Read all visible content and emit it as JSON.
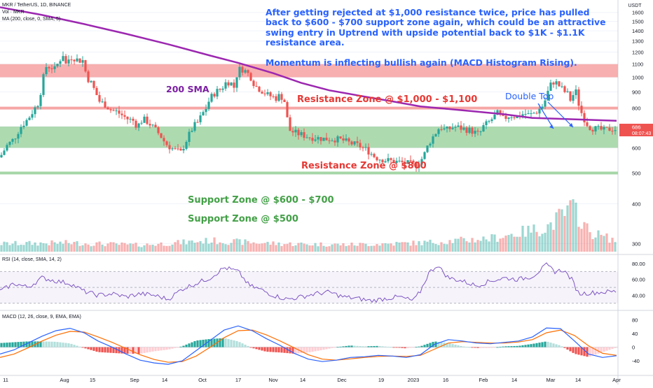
{
  "header": {
    "symbol_line": "MKR / TetherUS, 1D, BINANCE",
    "volume_line": "Vol · MKR",
    "ma_line": "MA (200, close, 0, SMA, 5)",
    "rsi_line": "RSI (14, close, SMA, 14, 2)",
    "macd_line": "MACD (12, 26, close, 9, EMA, EMA)"
  },
  "commentary": {
    "lines": [
      "After getting rejected at $1,000 resistance twice, price has pulled",
      "back to $600 - $700 support zone again, which could be an attractive",
      "swing entry in Uptrend with upside potential back to $1K - $1.1K",
      "resistance area.",
      "",
      "Momentum is inflecting bullish again (MACD Histogram Rising)."
    ]
  },
  "annotations": {
    "sma_label": "200 SMA",
    "double_top": "Double Top",
    "resistance_1000": "Resistance Zone @ $1,000 - $1,100",
    "resistance_800": "Resistance Zone @ $800",
    "support_600": "Support Zone @ $600 - $700",
    "support_500": "Support Zone @ $500"
  },
  "axis": {
    "currency": "USDT",
    "price_ticks": [
      "1600",
      "1500",
      "1400",
      "1300",
      "1200",
      "1100",
      "1000",
      "900",
      "800",
      "700",
      "600",
      "500",
      "400",
      "300"
    ],
    "rsi_ticks": [
      "80.00",
      "60.00",
      "40.00"
    ],
    "macd_ticks": [
      "80",
      "40",
      "0",
      "-40"
    ],
    "time_ticks": [
      "11",
      "Aug",
      "15",
      "Sep",
      "14",
      "Oct",
      "17",
      "Nov",
      "14",
      "Dec",
      "19",
      "2023",
      "16",
      "Feb",
      "14",
      "Mar",
      "14",
      "Apr"
    ],
    "last_price": "686",
    "countdown": "08:07:43"
  },
  "colors": {
    "up": "#26a69a",
    "down": "#ef5350",
    "sma": "#9c27b0",
    "resistance_zone": "#f7a6a6",
    "support_zone": "#a5d6a7",
    "text_blue": "#2962ff",
    "text_red": "#e53935",
    "text_green": "#43a047",
    "rsi_line": "#7e57c2",
    "macd_line": "#2962ff",
    "signal_line": "#ff6d00"
  },
  "chart_data": {
    "type": "candlestick",
    "price_scale": "log",
    "ylim": [
      280,
      1750
    ],
    "zones": [
      {
        "name": "Resistance Zone @ $1,000 - $1,100",
        "low": 1000,
        "high": 1100,
        "kind": "resistance"
      },
      {
        "name": "Resistance Zone @ $800",
        "level": 800,
        "kind": "resistance"
      },
      {
        "name": "Support Zone @ $600 - $700",
        "low": 600,
        "high": 700,
        "kind": "support"
      },
      {
        "name": "Support Zone @ $500",
        "level": 500,
        "kind": "support"
      }
    ],
    "close_path": [
      [
        0,
        560
      ],
      [
        10,
        610
      ],
      [
        20,
        640
      ],
      [
        30,
        700
      ],
      [
        40,
        740
      ],
      [
        50,
        800
      ],
      [
        56,
        840
      ],
      [
        60,
        960
      ],
      [
        66,
        1080
      ],
      [
        72,
        1080
      ],
      [
        78,
        1060
      ],
      [
        84,
        1120
      ],
      [
        90,
        1180
      ],
      [
        94,
        1100
      ],
      [
        100,
        1160
      ],
      [
        106,
        1150
      ],
      [
        112,
        1130
      ],
      [
        118,
        1130
      ],
      [
        124,
        1000
      ],
      [
        130,
        960
      ],
      [
        136,
        900
      ],
      [
        142,
        840
      ],
      [
        150,
        820
      ],
      [
        158,
        790
      ],
      [
        166,
        780
      ],
      [
        174,
        760
      ],
      [
        182,
        740
      ],
      [
        190,
        730
      ],
      [
        196,
        700
      ],
      [
        204,
        740
      ],
      [
        212,
        720
      ],
      [
        220,
        690
      ],
      [
        228,
        660
      ],
      [
        236,
        620
      ],
      [
        244,
        600
      ],
      [
        250,
        590
      ],
      [
        258,
        580
      ],
      [
        264,
        620
      ],
      [
        270,
        660
      ],
      [
        276,
        700
      ],
      [
        282,
        720
      ],
      [
        288,
        760
      ],
      [
        294,
        800
      ],
      [
        300,
        860
      ],
      [
        308,
        900
      ],
      [
        316,
        920
      ],
      [
        322,
        960
      ],
      [
        328,
        970
      ],
      [
        334,
        930
      ],
      [
        340,
        1060
      ],
      [
        346,
        1060
      ],
      [
        352,
        1040
      ],
      [
        358,
        1000
      ],
      [
        364,
        940
      ],
      [
        370,
        920
      ],
      [
        376,
        900
      ],
      [
        382,
        880
      ],
      [
        388,
        870
      ],
      [
        394,
        860
      ],
      [
        400,
        880
      ],
      [
        406,
        840
      ],
      [
        410,
        740
      ],
      [
        414,
        680
      ],
      [
        420,
        670
      ],
      [
        430,
        660
      ],
      [
        440,
        650
      ],
      [
        452,
        645
      ],
      [
        464,
        640
      ],
      [
        476,
        640
      ],
      [
        488,
        635
      ],
      [
        500,
        620
      ],
      [
        512,
        610
      ],
      [
        524,
        590
      ],
      [
        536,
        560
      ],
      [
        548,
        550
      ],
      [
        560,
        545
      ],
      [
        572,
        540
      ],
      [
        584,
        535
      ],
      [
        594,
        530
      ],
      [
        604,
        560
      ],
      [
        612,
        620
      ],
      [
        620,
        660
      ],
      [
        628,
        700
      ],
      [
        636,
        680
      ],
      [
        648,
        700
      ],
      [
        660,
        690
      ],
      [
        672,
        680
      ],
      [
        684,
        660
      ],
      [
        690,
        700
      ],
      [
        700,
        730
      ],
      [
        710,
        770
      ],
      [
        718,
        740
      ],
      [
        728,
        760
      ],
      [
        738,
        750
      ],
      [
        748,
        770
      ],
      [
        756,
        760
      ],
      [
        766,
        780
      ],
      [
        776,
        820
      ],
      [
        782,
        900
      ],
      [
        788,
        970
      ],
      [
        794,
        960
      ],
      [
        800,
        930
      ],
      [
        806,
        900
      ],
      [
        812,
        880
      ],
      [
        816,
        820
      ],
      [
        820,
        940
      ],
      [
        824,
        860
      ],
      [
        828,
        790
      ],
      [
        834,
        740
      ],
      [
        840,
        700
      ],
      [
        848,
        690
      ],
      [
        856,
        685
      ],
      [
        864,
        680
      ],
      [
        872,
        690
      ],
      [
        880,
        686
      ]
    ],
    "sma_200_path": [
      [
        0,
        1660
      ],
      [
        60,
        1570
      ],
      [
        120,
        1470
      ],
      [
        180,
        1370
      ],
      [
        240,
        1270
      ],
      [
        300,
        1170
      ],
      [
        340,
        1110
      ],
      [
        390,
        1030
      ],
      [
        430,
        960
      ],
      [
        470,
        910
      ],
      [
        520,
        870
      ],
      [
        560,
        840
      ],
      [
        600,
        810
      ],
      [
        640,
        795
      ],
      [
        680,
        780
      ],
      [
        720,
        765
      ],
      [
        760,
        745
      ],
      [
        800,
        740
      ],
      [
        840,
        735
      ],
      [
        880,
        730
      ]
    ],
    "volume_path": [
      [
        0,
        0.18
      ],
      [
        100,
        0.2
      ],
      [
        200,
        0.15
      ],
      [
        300,
        0.25
      ],
      [
        400,
        0.18
      ],
      [
        500,
        0.16
      ],
      [
        600,
        0.2
      ],
      [
        700,
        0.3
      ],
      [
        780,
        0.55
      ],
      [
        810,
        0.9
      ],
      [
        820,
        1.0
      ],
      [
        840,
        0.45
      ],
      [
        880,
        0.25
      ]
    ],
    "rsi_ylim": [
      28,
      88
    ],
    "rsi_path": [
      [
        0,
        45
      ],
      [
        20,
        55
      ],
      [
        40,
        50
      ],
      [
        60,
        62
      ],
      [
        80,
        58
      ],
      [
        100,
        55
      ],
      [
        120,
        45
      ],
      [
        140,
        40
      ],
      [
        160,
        42
      ],
      [
        180,
        38
      ],
      [
        200,
        42
      ],
      [
        220,
        40
      ],
      [
        240,
        35
      ],
      [
        260,
        48
      ],
      [
        280,
        55
      ],
      [
        300,
        62
      ],
      [
        320,
        75
      ],
      [
        340,
        70
      ],
      [
        356,
        52
      ],
      [
        370,
        48
      ],
      [
        390,
        40
      ],
      [
        410,
        35
      ],
      [
        430,
        38
      ],
      [
        450,
        42
      ],
      [
        470,
        44
      ],
      [
        490,
        38
      ],
      [
        510,
        36
      ],
      [
        530,
        33
      ],
      [
        550,
        36
      ],
      [
        570,
        38
      ],
      [
        590,
        33
      ],
      [
        600,
        45
      ],
      [
        612,
        68
      ],
      [
        624,
        78
      ],
      [
        640,
        62
      ],
      [
        660,
        58
      ],
      [
        680,
        52
      ],
      [
        700,
        58
      ],
      [
        720,
        62
      ],
      [
        740,
        60
      ],
      [
        760,
        64
      ],
      [
        780,
        78
      ],
      [
        792,
        70
      ],
      [
        804,
        72
      ],
      [
        816,
        60
      ],
      [
        826,
        42
      ],
      [
        840,
        43
      ],
      [
        860,
        44
      ],
      [
        880,
        45
      ]
    ],
    "macd_ylim": [
      -60,
      95
    ],
    "macd_path": [
      [
        0,
        -20
      ],
      [
        20,
        -8
      ],
      [
        40,
        12
      ],
      [
        60,
        32
      ],
      [
        80,
        48
      ],
      [
        100,
        55
      ],
      [
        120,
        42
      ],
      [
        140,
        18
      ],
      [
        160,
        0
      ],
      [
        180,
        -20
      ],
      [
        200,
        -38
      ],
      [
        220,
        -46
      ],
      [
        240,
        -50
      ],
      [
        260,
        -40
      ],
      [
        280,
        -10
      ],
      [
        300,
        20
      ],
      [
        320,
        50
      ],
      [
        340,
        62
      ],
      [
        360,
        48
      ],
      [
        380,
        25
      ],
      [
        400,
        5
      ],
      [
        420,
        -18
      ],
      [
        440,
        -35
      ],
      [
        460,
        -42
      ],
      [
        480,
        -38
      ],
      [
        500,
        -30
      ],
      [
        520,
        -28
      ],
      [
        540,
        -24
      ],
      [
        560,
        -26
      ],
      [
        580,
        -30
      ],
      [
        600,
        -22
      ],
      [
        620,
        8
      ],
      [
        640,
        22
      ],
      [
        660,
        18
      ],
      [
        680,
        12
      ],
      [
        700,
        10
      ],
      [
        720,
        14
      ],
      [
        740,
        18
      ],
      [
        760,
        30
      ],
      [
        780,
        56
      ],
      [
        800,
        54
      ],
      [
        820,
        18
      ],
      [
        840,
        -20
      ],
      [
        860,
        -30
      ],
      [
        880,
        -25
      ]
    ],
    "signal_path": [
      [
        0,
        -30
      ],
      [
        20,
        -20
      ],
      [
        40,
        -2
      ],
      [
        60,
        18
      ],
      [
        80,
        35
      ],
      [
        100,
        46
      ],
      [
        120,
        44
      ],
      [
        140,
        30
      ],
      [
        160,
        14
      ],
      [
        180,
        -4
      ],
      [
        200,
        -22
      ],
      [
        220,
        -36
      ],
      [
        240,
        -44
      ],
      [
        260,
        -42
      ],
      [
        280,
        -26
      ],
      [
        300,
        0
      ],
      [
        320,
        28
      ],
      [
        340,
        48
      ],
      [
        360,
        50
      ],
      [
        380,
        36
      ],
      [
        400,
        18
      ],
      [
        420,
        -2
      ],
      [
        440,
        -22
      ],
      [
        460,
        -35
      ],
      [
        480,
        -38
      ],
      [
        500,
        -34
      ],
      [
        520,
        -30
      ],
      [
        540,
        -27
      ],
      [
        560,
        -26
      ],
      [
        580,
        -27
      ],
      [
        600,
        -24
      ],
      [
        620,
        -6
      ],
      [
        640,
        12
      ],
      [
        660,
        16
      ],
      [
        680,
        14
      ],
      [
        700,
        12
      ],
      [
        720,
        12
      ],
      [
        740,
        15
      ],
      [
        760,
        22
      ],
      [
        780,
        42
      ],
      [
        800,
        50
      ],
      [
        820,
        34
      ],
      [
        840,
        4
      ],
      [
        860,
        -18
      ],
      [
        880,
        -24
      ]
    ]
  }
}
